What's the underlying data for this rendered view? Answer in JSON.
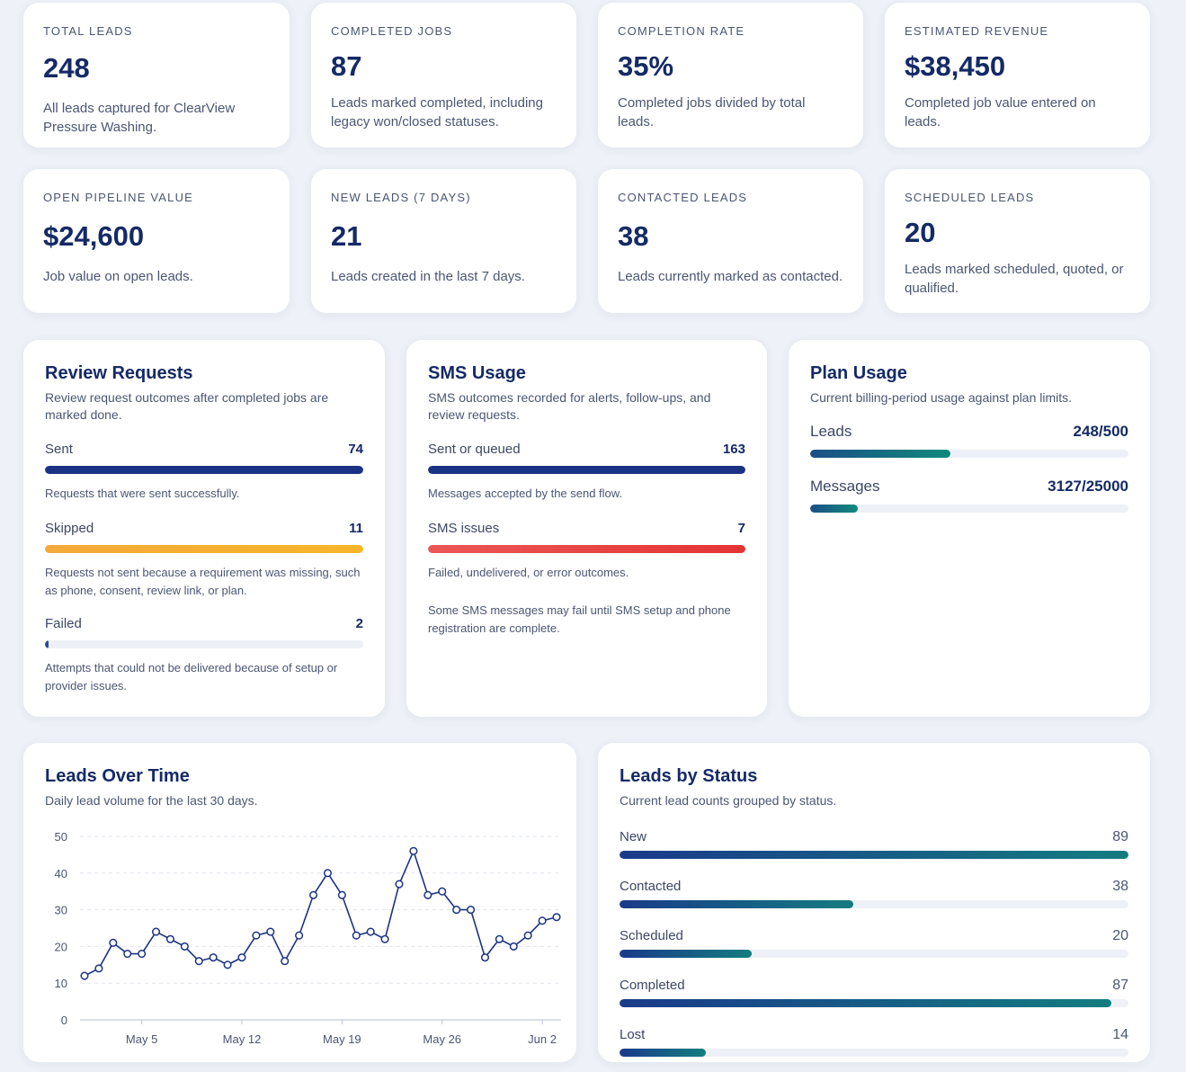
{
  "kpis": [
    {
      "label": "TOTAL LEADS",
      "value": "248",
      "desc": "All leads captured for ClearView Pressure Washing."
    },
    {
      "label": "COMPLETED JOBS",
      "value": "87",
      "desc": "Leads marked completed, including legacy won/closed statuses."
    },
    {
      "label": "COMPLETION RATE",
      "value": "35%",
      "desc": "Completed jobs divided by total leads."
    },
    {
      "label": "ESTIMATED REVENUE",
      "value": "$38,450",
      "desc": "Completed job value entered on leads."
    },
    {
      "label": "OPEN PIPELINE VALUE",
      "value": "$24,600",
      "desc": "Job value on open leads."
    },
    {
      "label": "NEW LEADS (7 DAYS)",
      "value": "21",
      "desc": "Leads created in the last 7 days."
    },
    {
      "label": "CONTACTED LEADS",
      "value": "38",
      "desc": "Leads currently marked as contacted."
    },
    {
      "label": "SCHEDULED LEADS",
      "value": "20",
      "desc": "Leads marked scheduled, quoted, or qualified."
    }
  ],
  "review": {
    "title": "Review Requests",
    "subtitle": "Review request outcomes after completed jobs are marked done.",
    "items": [
      {
        "label": "Sent",
        "value": "74",
        "fraction": 1.0,
        "note": "Requests that were sent successfully.",
        "color": "#1b3384"
      },
      {
        "label": "Skipped",
        "value": "11",
        "fraction": 1.0,
        "note": "Requests not sent because a requirement was missing, such as phone, consent, review link, or plan.",
        "color": "#f4a93a"
      },
      {
        "label": "Failed",
        "value": "2",
        "fraction": 0.012,
        "note": "Attempts that could not be delivered because of setup or provider issues.",
        "color": "#2c4a9c"
      }
    ]
  },
  "sms": {
    "title": "SMS Usage",
    "subtitle": "SMS outcomes recorded for alerts, follow-ups, and review requests.",
    "items": [
      {
        "label": "Sent or queued",
        "value": "163",
        "fraction": 1.0,
        "note": "Messages accepted by the send flow.",
        "color": "#1b3384"
      },
      {
        "label": "SMS issues",
        "value": "7",
        "fraction": 1.0,
        "note": "Failed, undelivered, or error outcomes.",
        "color": "#e43434"
      }
    ],
    "footnote": "Some SMS messages may fail until SMS setup and phone registration are complete."
  },
  "plan": {
    "title": "Plan Usage",
    "subtitle": "Current billing-period usage against plan limits.",
    "items": [
      {
        "label": "Leads",
        "value": "248/500",
        "fraction": 0.44
      },
      {
        "label": "Messages",
        "value": "3127/25000",
        "fraction": 0.15
      }
    ]
  },
  "leads_over_time": {
    "title": "Leads Over Time",
    "subtitle": "Daily lead volume for the last 30 days."
  },
  "status": {
    "title": "Leads by Status",
    "subtitle": "Current lead counts grouped by status.",
    "items": [
      {
        "label": "New",
        "value": "89",
        "fraction": 1.0
      },
      {
        "label": "Contacted",
        "value": "38",
        "fraction": 0.46
      },
      {
        "label": "Scheduled",
        "value": "20",
        "fraction": 0.26
      },
      {
        "label": "Completed",
        "value": "87",
        "fraction": 0.966
      },
      {
        "label": "Lost",
        "value": "14",
        "fraction": 0.17
      }
    ]
  },
  "chart_data": {
    "type": "line",
    "title": "Leads Over Time",
    "x_ticks": [
      "May 5",
      "May 12",
      "May 19",
      "May 26",
      "Jun 2"
    ],
    "x_tick_index": [
      4,
      11,
      18,
      25,
      32
    ],
    "y_ticks": [
      0,
      10,
      20,
      30,
      40,
      50
    ],
    "ylim": [
      0,
      50
    ],
    "x": [
      "May 1",
      "May 2",
      "May 3",
      "May 4",
      "May 5",
      "May 6",
      "May 7",
      "May 8",
      "May 9",
      "May 10",
      "May 11",
      "May 12",
      "May 13",
      "May 14",
      "May 15",
      "May 16",
      "May 17",
      "May 18",
      "May 19",
      "May 20",
      "May 21",
      "May 22",
      "May 23",
      "May 24",
      "May 25",
      "May 26",
      "May 27",
      "May 28",
      "May 29",
      "May 30",
      "May 31",
      "Jun 1",
      "Jun 2",
      "Jun 3"
    ],
    "values": [
      12,
      14,
      21,
      18,
      18,
      24,
      22,
      20,
      16,
      17,
      15,
      17,
      23,
      24,
      16,
      23,
      34,
      40,
      34,
      23,
      24,
      22,
      37,
      46,
      34,
      35,
      30,
      30,
      17,
      22,
      20,
      23,
      27,
      28
    ],
    "grid": true,
    "color": "#1b3384"
  }
}
